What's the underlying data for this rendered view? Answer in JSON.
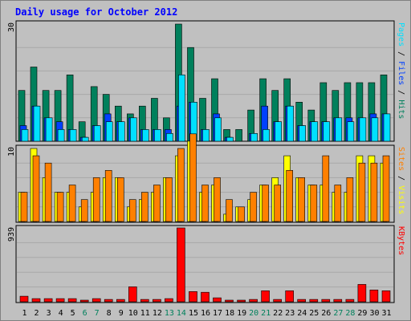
{
  "title": "Daily usage for October 2012",
  "colors": {
    "background": "#c0c0c0",
    "title": "#0000ff",
    "frame": "#808080",
    "hits": "#00805c",
    "files": "#0040ff",
    "pages": "#00e0ff",
    "visits": "#ffff00",
    "sites": "#ff8000",
    "kbytes": "#ff0000",
    "weekend_day": "#00805c",
    "weekday": "#000000"
  },
  "chart_data": {
    "type": "bar",
    "title": "Daily usage for October 2012",
    "categories": [
      "1",
      "2",
      "3",
      "4",
      "5",
      "6",
      "7",
      "8",
      "9",
      "10",
      "11",
      "12",
      "13",
      "14",
      "15",
      "16",
      "17",
      "18",
      "19",
      "20",
      "21",
      "22",
      "23",
      "24",
      "25",
      "26",
      "27",
      "28",
      "29",
      "30",
      "31"
    ],
    "weekend_days": [
      "6",
      "7",
      "13",
      "14",
      "20",
      "21",
      "27",
      "28"
    ],
    "panels": [
      {
        "name": "hits-files-pages",
        "ymax": 30,
        "ymax_label": "30",
        "legend": [
          {
            "text": "Pages",
            "color": "#00e0ff"
          },
          {
            "text": "/",
            "color": "#000000"
          },
          {
            "text": "Files",
            "color": "#0040ff"
          },
          {
            "text": "/",
            "color": "#000000"
          },
          {
            "text": "Hits",
            "color": "#00805c"
          }
        ],
        "series": [
          {
            "name": "Hits",
            "color": "#00805c",
            "values": [
              13,
              19,
              13,
              13,
              17,
              5,
              14,
              12,
              9,
              7,
              9,
              11,
              6,
              30,
              24,
              11,
              16,
              3,
              3,
              8,
              16,
              13,
              16,
              10,
              8,
              15,
              13,
              15,
              15,
              15,
              17
            ]
          },
          {
            "name": "Files",
            "color": "#0040ff",
            "values": [
              4,
              9,
              6,
              5,
              3,
              1,
              4,
              7,
              5,
              6,
              3,
              3,
              3,
              9,
              10,
              3,
              7,
              1,
              0,
              2,
              9,
              5,
              9,
              4,
              5,
              5,
              6,
              6,
              6,
              7,
              7
            ]
          },
          {
            "name": "Pages",
            "color": "#00e0ff",
            "values": [
              3,
              9,
              6,
              3,
              3,
              1,
              4,
              5,
              5,
              6,
              3,
              3,
              2,
              17,
              10,
              3,
              6,
              1,
              0,
              2,
              3,
              5,
              9,
              4,
              5,
              5,
              6,
              5,
              6,
              6,
              7
            ]
          }
        ]
      },
      {
        "name": "visits-sites",
        "ymax": 10,
        "ymax_label": "10",
        "legend": [
          {
            "text": "Sites",
            "color": "#ff8000"
          },
          {
            "text": "/",
            "color": "#000000"
          },
          {
            "text": "Visits",
            "color": "#ffff00"
          }
        ],
        "series": [
          {
            "name": "Visits",
            "color": "#ffff00",
            "values": [
              4,
              10,
              6,
              4,
              4,
              2,
              4,
              6,
              6,
              2,
              3,
              4,
              6,
              9,
              11,
              4,
              5,
              1,
              2,
              3,
              5,
              6,
              9,
              6,
              5,
              5,
              4,
              4,
              9,
              9,
              8
            ]
          },
          {
            "name": "Sites",
            "color": "#ff8000",
            "values": [
              4,
              9,
              8,
              4,
              5,
              3,
              6,
              7,
              6,
              3,
              4,
              5,
              6,
              10,
              12,
              5,
              6,
              3,
              2,
              4,
              5,
              5,
              7,
              6,
              5,
              9,
              5,
              6,
              8,
              8,
              9
            ]
          }
        ]
      },
      {
        "name": "kbytes",
        "ymax": 939,
        "ymax_label": "939",
        "legend": [
          {
            "text": "KBytes",
            "color": "#ff0000"
          }
        ],
        "series": [
          {
            "name": "KBytes",
            "color": "#ff0000",
            "values": [
              70,
              40,
              40,
              40,
              40,
              20,
              40,
              30,
              30,
              190,
              30,
              30,
              40,
              939,
              130,
              120,
              50,
              20,
              20,
              30,
              140,
              30,
              140,
              30,
              30,
              30,
              30,
              30,
              220,
              150,
              140
            ]
          }
        ]
      }
    ]
  }
}
